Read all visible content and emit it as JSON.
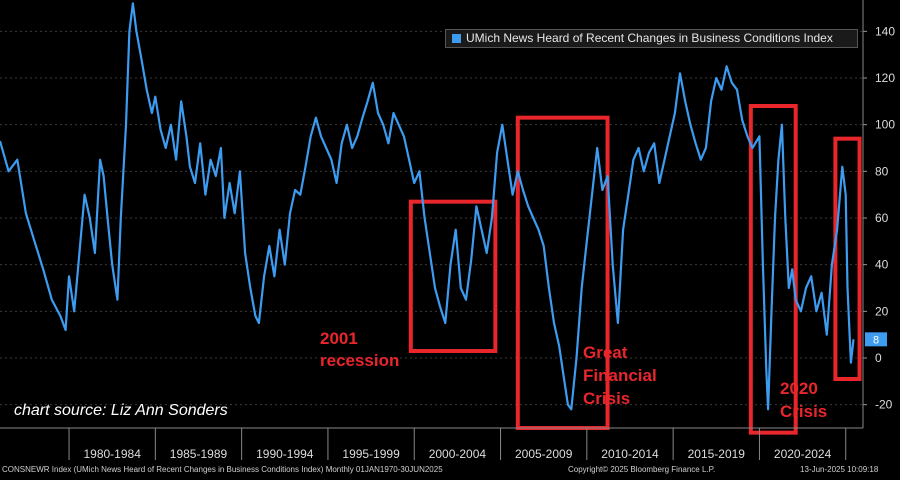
{
  "colors": {
    "line": "#3d9bf0",
    "annotation": "#e8262b",
    "current_badge": "#3d9bf0"
  },
  "legend": {
    "label": "UMich News Heard of Recent Changes in Business Conditions Index"
  },
  "source_text": "chart source: Liz Ann Sonders",
  "footer": {
    "left": "CONSNEWR Index (UMich News Heard of Recent Changes in Business Conditions Index) Monthly 01JAN1970-30JUN2025",
    "center": "Copyright© 2025 Bloomberg Finance L.P.",
    "right": "13-Jun-2025 10:09:18"
  },
  "annotations": [
    {
      "id": "recession-2001",
      "lines": [
        "2001",
        "recession"
      ],
      "start_year": 1999.8,
      "end_year": 2004.7,
      "top": 67,
      "bottom": 3
    },
    {
      "id": "gfc",
      "lines": [
        "Great",
        "Financial",
        "Crisis"
      ],
      "start_year": 2006.0,
      "end_year": 2011.2,
      "top": 103,
      "bottom": -30
    },
    {
      "id": "crisis-2020",
      "lines": [
        "2020",
        "Crisis"
      ],
      "start_year": 2019.5,
      "end_year": 2022.1,
      "top": 108,
      "bottom": -32
    },
    {
      "id": "recent",
      "lines": [],
      "start_year": 2024.4,
      "end_year": 2025.8,
      "top": 94,
      "bottom": -9
    }
  ],
  "chart_data": {
    "type": "line",
    "series": [
      {
        "name": "UMich News Heard of Recent Changes in Business Conditions Index"
      }
    ],
    "x_range": [
      1976.0,
      2026.0
    ],
    "ylim": [
      -30,
      150
    ],
    "yticks": [
      -20,
      0,
      20,
      40,
      60,
      80,
      100,
      120,
      140
    ],
    "xtick_labels": [
      "1980-1984",
      "1985-1989",
      "1990-1994",
      "1995-1999",
      "2000-2004",
      "2005-2009",
      "2010-2014",
      "2015-2019",
      "2020-2024"
    ],
    "last_value": 8,
    "points": [
      [
        1976.0,
        93
      ],
      [
        1976.5,
        80
      ],
      [
        1977.0,
        85
      ],
      [
        1977.5,
        62
      ],
      [
        1978.0,
        50
      ],
      [
        1978.5,
        38
      ],
      [
        1979.0,
        25
      ],
      [
        1979.5,
        18
      ],
      [
        1979.8,
        12
      ],
      [
        1980.0,
        35
      ],
      [
        1980.3,
        20
      ],
      [
        1980.6,
        45
      ],
      [
        1980.9,
        70
      ],
      [
        1981.2,
        60
      ],
      [
        1981.5,
        45
      ],
      [
        1981.8,
        85
      ],
      [
        1982.0,
        78
      ],
      [
        1982.3,
        55
      ],
      [
        1982.5,
        40
      ],
      [
        1982.8,
        25
      ],
      [
        1983.0,
        60
      ],
      [
        1983.3,
        100
      ],
      [
        1983.5,
        140
      ],
      [
        1983.7,
        152
      ],
      [
        1983.9,
        140
      ],
      [
        1984.2,
        128
      ],
      [
        1984.5,
        115
      ],
      [
        1984.8,
        105
      ],
      [
        1985.0,
        112
      ],
      [
        1985.3,
        98
      ],
      [
        1985.6,
        90
      ],
      [
        1985.9,
        100
      ],
      [
        1986.2,
        85
      ],
      [
        1986.5,
        110
      ],
      [
        1986.8,
        95
      ],
      [
        1987.0,
        82
      ],
      [
        1987.3,
        75
      ],
      [
        1987.6,
        92
      ],
      [
        1987.9,
        70
      ],
      [
        1988.2,
        85
      ],
      [
        1988.5,
        78
      ],
      [
        1988.8,
        90
      ],
      [
        1989.0,
        60
      ],
      [
        1989.3,
        75
      ],
      [
        1989.6,
        62
      ],
      [
        1989.9,
        80
      ],
      [
        1990.2,
        45
      ],
      [
        1990.5,
        30
      ],
      [
        1990.8,
        18
      ],
      [
        1991.0,
        15
      ],
      [
        1991.3,
        35
      ],
      [
        1991.6,
        48
      ],
      [
        1991.9,
        35
      ],
      [
        1992.2,
        55
      ],
      [
        1992.5,
        40
      ],
      [
        1992.8,
        62
      ],
      [
        1993.1,
        72
      ],
      [
        1993.4,
        70
      ],
      [
        1993.7,
        82
      ],
      [
        1994.0,
        95
      ],
      [
        1994.3,
        103
      ],
      [
        1994.6,
        95
      ],
      [
        1994.9,
        90
      ],
      [
        1995.2,
        85
      ],
      [
        1995.5,
        75
      ],
      [
        1995.8,
        92
      ],
      [
        1996.1,
        100
      ],
      [
        1996.4,
        90
      ],
      [
        1996.7,
        95
      ],
      [
        1997.0,
        103
      ],
      [
        1997.3,
        110
      ],
      [
        1997.6,
        118
      ],
      [
        1997.9,
        105
      ],
      [
        1998.2,
        100
      ],
      [
        1998.5,
        92
      ],
      [
        1998.8,
        105
      ],
      [
        1999.1,
        100
      ],
      [
        1999.4,
        95
      ],
      [
        1999.7,
        85
      ],
      [
        2000.0,
        75
      ],
      [
        2000.3,
        80
      ],
      [
        2000.6,
        60
      ],
      [
        2000.9,
        45
      ],
      [
        2001.2,
        30
      ],
      [
        2001.5,
        22
      ],
      [
        2001.8,
        15
      ],
      [
        2002.1,
        40
      ],
      [
        2002.4,
        55
      ],
      [
        2002.7,
        30
      ],
      [
        2003.0,
        25
      ],
      [
        2003.3,
        42
      ],
      [
        2003.6,
        65
      ],
      [
        2003.9,
        55
      ],
      [
        2004.2,
        45
      ],
      [
        2004.5,
        60
      ],
      [
        2004.8,
        88
      ],
      [
        2005.1,
        100
      ],
      [
        2005.4,
        85
      ],
      [
        2005.7,
        70
      ],
      [
        2006.0,
        80
      ],
      [
        2006.3,
        72
      ],
      [
        2006.6,
        65
      ],
      [
        2006.9,
        60
      ],
      [
        2007.2,
        55
      ],
      [
        2007.5,
        48
      ],
      [
        2007.8,
        30
      ],
      [
        2008.1,
        15
      ],
      [
        2008.4,
        5
      ],
      [
        2008.7,
        -10
      ],
      [
        2008.9,
        -20
      ],
      [
        2009.1,
        -22
      ],
      [
        2009.4,
        0
      ],
      [
        2009.7,
        30
      ],
      [
        2010.0,
        50
      ],
      [
        2010.3,
        70
      ],
      [
        2010.6,
        90
      ],
      [
        2010.9,
        72
      ],
      [
        2011.2,
        78
      ],
      [
        2011.5,
        40
      ],
      [
        2011.8,
        15
      ],
      [
        2012.1,
        55
      ],
      [
        2012.4,
        70
      ],
      [
        2012.7,
        85
      ],
      [
        2013.0,
        90
      ],
      [
        2013.3,
        80
      ],
      [
        2013.6,
        88
      ],
      [
        2013.9,
        92
      ],
      [
        2014.2,
        75
      ],
      [
        2014.5,
        85
      ],
      [
        2014.8,
        95
      ],
      [
        2015.1,
        105
      ],
      [
        2015.4,
        122
      ],
      [
        2015.7,
        110
      ],
      [
        2016.0,
        100
      ],
      [
        2016.3,
        92
      ],
      [
        2016.6,
        85
      ],
      [
        2016.9,
        90
      ],
      [
        2017.2,
        110
      ],
      [
        2017.5,
        120
      ],
      [
        2017.8,
        115
      ],
      [
        2018.1,
        125
      ],
      [
        2018.4,
        118
      ],
      [
        2018.7,
        115
      ],
      [
        2019.0,
        102
      ],
      [
        2019.3,
        95
      ],
      [
        2019.6,
        90
      ],
      [
        2020.0,
        95
      ],
      [
        2020.2,
        40
      ],
      [
        2020.4,
        -5
      ],
      [
        2020.5,
        -22
      ],
      [
        2020.7,
        20
      ],
      [
        2020.9,
        60
      ],
      [
        2021.1,
        85
      ],
      [
        2021.3,
        100
      ],
      [
        2021.5,
        60
      ],
      [
        2021.7,
        30
      ],
      [
        2021.9,
        38
      ],
      [
        2022.1,
        25
      ],
      [
        2022.4,
        20
      ],
      [
        2022.7,
        30
      ],
      [
        2023.0,
        35
      ],
      [
        2023.3,
        20
      ],
      [
        2023.6,
        28
      ],
      [
        2023.9,
        10
      ],
      [
        2024.2,
        40
      ],
      [
        2024.5,
        55
      ],
      [
        2024.8,
        82
      ],
      [
        2025.0,
        70
      ],
      [
        2025.1,
        30
      ],
      [
        2025.3,
        -2
      ],
      [
        2025.45,
        8
      ]
    ]
  }
}
